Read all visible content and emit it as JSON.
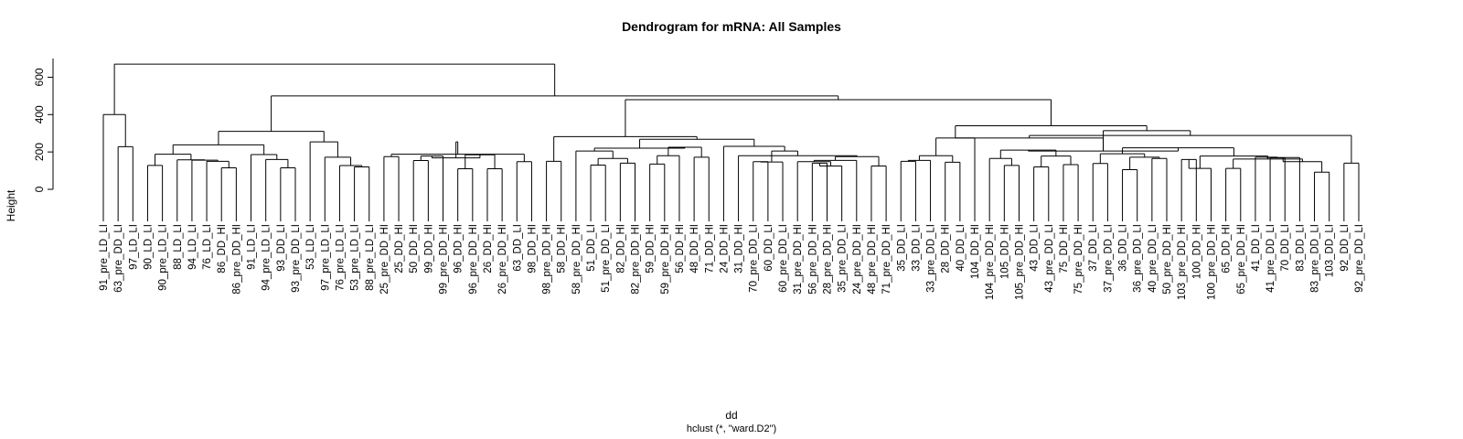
{
  "chart_data": {
    "type": "dendrogram",
    "title": "Dendrogram for mRNA: All Samples",
    "xlabel": "dd",
    "sublabel": "hclust (*, \"ward.D2\")",
    "ylabel": "Height",
    "y_ticks": [
      0,
      200,
      400,
      600
    ],
    "ylim": [
      0,
      700
    ],
    "labels": [
      "91_pre_LD_LI",
      "63_pre_DD_LI",
      "97_LD_LI",
      "90_LD_LI",
      "90_pre_LD_LI",
      "88_LD_LI",
      "94_LD_LI",
      "76_LD_LI",
      "86_DD_HI",
      "86_pre_DD_HI",
      "91_LD_LI",
      "94_pre_LD_LI",
      "93_DD_LI",
      "93_pre_DD_LI",
      "53_LD_LI",
      "97_pre_LD_LI",
      "76_pre_LD_LI",
      "53_pre_LD_LI",
      "88_pre_LD_LI",
      "25_pre_DD_HI",
      "25_DD_HI",
      "50_DD_HI",
      "99_DD_HI",
      "99_pre_DD_HI",
      "96_DD_HI",
      "96_pre_DD_HI",
      "26_DD_HI",
      "26_pre_DD_HI",
      "63_DD_LI",
      "98_DD_HI",
      "98_pre_DD_HI",
      "58_DD_HI",
      "58_pre_DD_HI",
      "51_DD_LI",
      "51_pre_DD_LI",
      "82_DD_HI",
      "82_pre_DD_HI",
      "59_DD_HI",
      "59_pre_DD_HI",
      "56_DD_HI",
      "48_DD_HI",
      "71_DD_HI",
      "24_DD_HI",
      "31_DD_HI",
      "70_pre_DD_LI",
      "60_DD_LI",
      "60_pre_DD_LI",
      "31_pre_DD_HI",
      "56_pre_DD_HI",
      "28_pre_DD_HI",
      "35_pre_DD_LI",
      "24_pre_DD_HI",
      "48_pre_DD_HI",
      "71_pre_DD_HI",
      "35_DD_LI",
      "33_DD_LI",
      "33_pre_DD_LI",
      "28_DD_HI",
      "40_DD_LI",
      "104_DD_HI",
      "104_pre_DD_HI",
      "105_DD_HI",
      "105_pre_DD_HI",
      "43_DD_LI",
      "43_pre_DD_LI",
      "75_DD_HI",
      "75_pre_DD_HI",
      "37_DD_LI",
      "37_pre_DD_LI",
      "36_DD_LI",
      "36_pre_DD_LI",
      "40_pre_DD_LI",
      "50_pre_DD_HI",
      "103_pre_DD_HI",
      "100_DD_HI",
      "100_pre_DD_HI",
      "65_DD_HI",
      "65_pre_DD_HI",
      "41_DD_LI",
      "41_pre_DD_LI",
      "70_DD_LI",
      "83_DD_LI",
      "83_pre_DD_LI",
      "103_DD_LI",
      "92_DD_LI",
      "92_pre_DD_LI"
    ],
    "leaf_heights": [
      0,
      0,
      0,
      0,
      0,
      0,
      0,
      0,
      0,
      0,
      0,
      0,
      0,
      0,
      0,
      0,
      0,
      0,
      0,
      0,
      0,
      0,
      0,
      0,
      0,
      0,
      0,
      0,
      0,
      0,
      0,
      0,
      0,
      0,
      0,
      0,
      0,
      0,
      0,
      0,
      0,
      0,
      0,
      0,
      0,
      0,
      0,
      0,
      0,
      0,
      0,
      0,
      0,
      0,
      0,
      0,
      0,
      0,
      0,
      0,
      0,
      0,
      0,
      0,
      0,
      0,
      0,
      0,
      0,
      0,
      0,
      0,
      0,
      0,
      0,
      0,
      0,
      0,
      0,
      0,
      0,
      0,
      0,
      0,
      0,
      0
    ],
    "merges": [
      [
        -9,
        -10,
        115
      ],
      [
        -8,
        1,
        150
      ],
      [
        -7,
        2,
        156
      ],
      [
        -6,
        3,
        158
      ],
      [
        -4,
        -5,
        128
      ],
      [
        4,
        5,
        188
      ],
      [
        -13,
        -14,
        115
      ],
      [
        -12,
        7,
        160
      ],
      [
        -11,
        8,
        186
      ],
      [
        6,
        9,
        238
      ],
      [
        -18,
        -19,
        120
      ],
      [
        -17,
        11,
        127
      ],
      [
        -16,
        12,
        172
      ],
      [
        -15,
        13,
        254
      ],
      [
        10,
        14,
        310
      ],
      [
        -2,
        -3,
        228
      ],
      [
        -1,
        16,
        400
      ],
      [
        -20,
        -21,
        175
      ],
      [
        -22,
        -23,
        154
      ],
      [
        -25,
        -26,
        110
      ],
      [
        -27,
        -28,
        110
      ],
      [
        -24,
        19,
        178
      ],
      [
        20,
        21,
        185
      ],
      [
        -29,
        -30,
        148
      ],
      [
        22,
        23,
        168
      ],
      [
        18,
        24,
        188
      ],
      [
        -31,
        -32,
        150
      ],
      [
        25,
        26,
        254
      ],
      [
        -34,
        -35,
        130
      ],
      [
        -36,
        -37,
        140
      ],
      [
        29,
        30,
        165
      ],
      [
        -33,
        31,
        205
      ],
      [
        -38,
        -39,
        135
      ],
      [
        -41,
        -42,
        172
      ],
      [
        -40,
        33,
        180
      ],
      [
        34,
        35,
        225
      ],
      [
        32,
        36,
        220
      ],
      [
        -45,
        -46,
        148
      ],
      [
        -47,
        38,
        146
      ],
      [
        -49,
        -50,
        140
      ],
      [
        -51,
        40,
        125
      ],
      [
        -48,
        41,
        148
      ],
      [
        -52,
        42,
        155
      ],
      [
        -53,
        -54,
        125
      ],
      [
        43,
        44,
        175
      ],
      [
        -44,
        45,
        180
      ],
      [
        39,
        46,
        205
      ],
      [
        -43,
        47,
        230
      ],
      [
        37,
        48,
        268
      ],
      [
        27,
        49,
        282
      ],
      [
        -55,
        -56,
        150
      ],
      [
        -57,
        51,
        155
      ],
      [
        -58,
        -59,
        145
      ],
      [
        52,
        53,
        180
      ],
      [
        -60,
        54,
        275
      ],
      [
        -62,
        -63,
        128
      ],
      [
        -61,
        56,
        165
      ],
      [
        -64,
        -65,
        120
      ],
      [
        -66,
        -67,
        132
      ],
      [
        58,
        59,
        178
      ],
      [
        57,
        60,
        210
      ],
      [
        -68,
        -69,
        138
      ],
      [
        -70,
        -71,
        105
      ],
      [
        -72,
        -73,
        165
      ],
      [
        63,
        64,
        172
      ],
      [
        62,
        65,
        190
      ],
      [
        -74,
        -75,
        160
      ],
      [
        -76,
        67,
        112
      ],
      [
        -77,
        -78,
        112
      ],
      [
        -80,
        -81,
        168
      ],
      [
        -79,
        70,
        172
      ],
      [
        -82,
        71,
        170
      ],
      [
        -83,
        -84,
        92
      ],
      [
        72,
        73,
        148
      ],
      [
        69,
        74,
        162
      ],
      [
        68,
        75,
        178
      ],
      [
        66,
        76,
        222
      ],
      [
        61,
        77,
        205
      ],
      [
        55,
        78,
        275
      ],
      [
        -85,
        -86,
        140
      ],
      [
        79,
        80,
        288
      ],
      [
        78,
        81,
        314
      ],
      [
        55,
        82,
        340
      ],
      [
        50,
        83,
        480
      ],
      [
        15,
        84,
        500
      ],
      [
        17,
        85,
        670
      ]
    ]
  }
}
